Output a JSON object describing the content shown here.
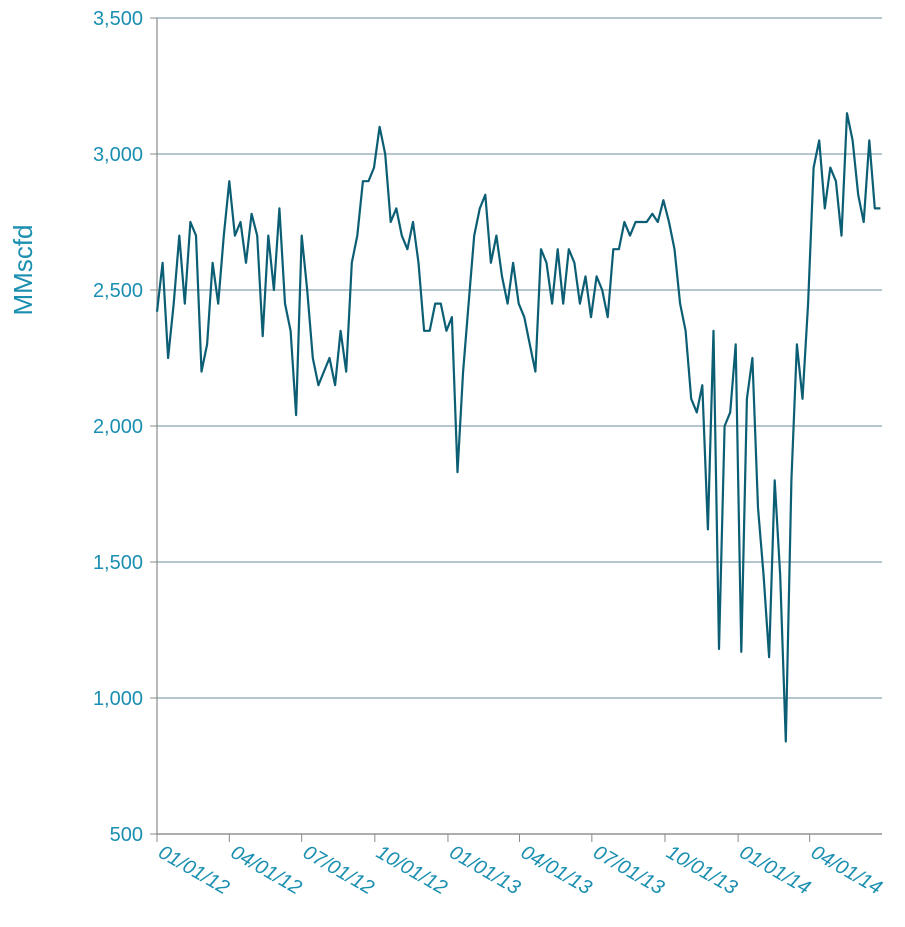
{
  "chart_data": {
    "type": "line",
    "y_label": "MMscfd",
    "x": [
      "01/01/12",
      "01/08/12",
      "01/15/12",
      "01/22/12",
      "01/29/12",
      "02/05/12",
      "02/12/12",
      "02/19/12",
      "02/26/12",
      "03/04/12",
      "03/11/12",
      "03/18/12",
      "03/25/12",
      "04/01/12",
      "04/08/12",
      "04/15/12",
      "04/22/12",
      "04/29/12",
      "05/06/12",
      "05/13/12",
      "05/20/12",
      "05/27/12",
      "06/03/12",
      "06/10/12",
      "06/17/12",
      "06/24/12",
      "07/01/12",
      "07/08/12",
      "07/15/12",
      "07/22/12",
      "07/29/12",
      "08/05/12",
      "08/12/12",
      "08/19/12",
      "08/26/12",
      "09/02/12",
      "09/09/12",
      "09/16/12",
      "09/23/12",
      "09/30/12",
      "10/07/12",
      "10/14/12",
      "10/21/12",
      "10/28/12",
      "11/04/12",
      "11/11/12",
      "11/18/12",
      "11/25/12",
      "12/02/12",
      "12/09/12",
      "12/16/12",
      "12/23/12",
      "12/30/12",
      "01/06/13",
      "01/13/13",
      "01/20/13",
      "01/27/13",
      "02/03/13",
      "02/10/13",
      "02/17/13",
      "02/24/13",
      "03/03/13",
      "03/10/13",
      "03/17/13",
      "03/24/13",
      "03/31/13",
      "04/07/13",
      "04/14/13",
      "04/21/13",
      "04/28/13",
      "05/05/13",
      "05/12/13",
      "05/19/13",
      "05/26/13",
      "06/02/13",
      "06/09/13",
      "06/16/13",
      "06/23/13",
      "06/30/13",
      "07/07/13",
      "07/14/13",
      "07/21/13",
      "07/28/13",
      "08/04/13",
      "08/11/13",
      "08/18/13",
      "08/25/13",
      "09/01/13",
      "09/08/13",
      "09/15/13",
      "09/22/13",
      "09/29/13",
      "10/06/13",
      "10/13/13",
      "10/20/13",
      "10/27/13",
      "11/03/13",
      "11/10/13",
      "11/17/13",
      "11/24/13",
      "12/01/13",
      "12/08/13",
      "12/15/13",
      "12/22/13",
      "12/29/13",
      "01/05/14",
      "01/12/14",
      "01/19/14",
      "01/26/14",
      "02/02/14",
      "02/09/14",
      "02/16/14",
      "02/23/14",
      "03/02/14",
      "03/09/14",
      "03/16/14",
      "03/23/14",
      "03/30/14",
      "04/06/14",
      "04/13/14",
      "04/20/14",
      "04/27/14",
      "05/04/14",
      "05/11/14",
      "05/18/14",
      "05/25/14",
      "06/01/14",
      "06/08/14",
      "06/15/14",
      "06/22/14",
      "06/29/14"
    ],
    "series": [
      {
        "color": "#0b5e74",
        "values": [
          2420,
          2600,
          2250,
          2450,
          2700,
          2450,
          2750,
          2700,
          2200,
          2300,
          2600,
          2450,
          2700,
          2900,
          2700,
          2750,
          2600,
          2780,
          2700,
          2330,
          2700,
          2500,
          2800,
          2450,
          2350,
          2040,
          2700,
          2500,
          2250,
          2150,
          2200,
          2250,
          2150,
          2350,
          2200,
          2600,
          2700,
          2900,
          2900,
          2950,
          3100,
          3000,
          2750,
          2800,
          2700,
          2650,
          2750,
          2600,
          2350,
          2350,
          2450,
          2450,
          2350,
          2400,
          1830,
          2200,
          2450,
          2700,
          2800,
          2850,
          2600,
          2700,
          2550,
          2450,
          2600,
          2450,
          2400,
          2300,
          2200,
          2650,
          2600,
          2450,
          2650,
          2450,
          2650,
          2600,
          2450,
          2550,
          2400,
          2550,
          2500,
          2400,
          2650,
          2650,
          2750,
          2700,
          2750,
          2750,
          2750,
          2780,
          2750,
          2830,
          2750,
          2650,
          2450,
          2350,
          2100,
          2050,
          2150,
          1620,
          2350,
          1180,
          2000,
          2050,
          2300,
          1170,
          2100,
          2250,
          1700,
          1450,
          1150,
          1800,
          1450,
          840,
          1800,
          2300,
          2100,
          2450,
          2950,
          3050,
          2800,
          2950,
          2900,
          2700,
          3150,
          3050,
          2850,
          2750,
          3050,
          2800,
          2800
        ]
      }
    ],
    "xlim": [
      "01/01/12",
      "07/01/14"
    ],
    "xticks": [
      "01/01/12",
      "04/01/12",
      "07/01/12",
      "10/01/12",
      "01/01/13",
      "04/01/13",
      "07/01/13",
      "10/01/13",
      "01/01/14",
      "04/01/14"
    ],
    "ylim": [
      500,
      3500
    ],
    "yticks": [
      {
        "value": 500,
        "label": "500"
      },
      {
        "value": 1000,
        "label": "1,000"
      },
      {
        "value": 1500,
        "label": "1,500"
      },
      {
        "value": 2000,
        "label": "2,000"
      },
      {
        "value": 2500,
        "label": "2,500"
      },
      {
        "value": 3000,
        "label": "3,000"
      },
      {
        "value": 3500,
        "label": "3,500"
      }
    ],
    "grid": true
  }
}
